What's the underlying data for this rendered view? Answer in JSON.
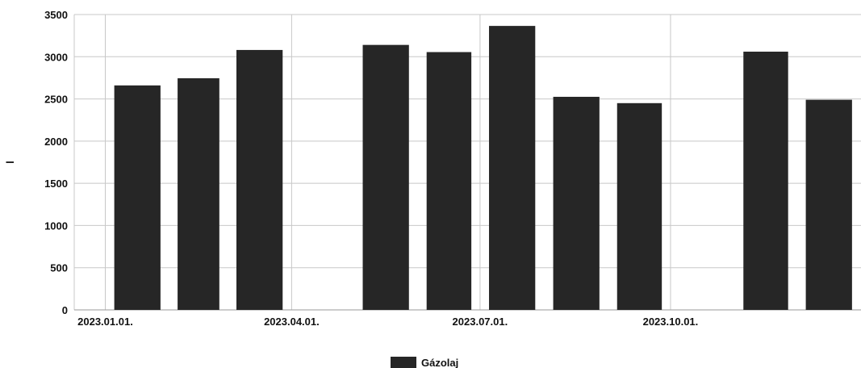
{
  "chart_data": {
    "type": "bar",
    "ylabel": "l",
    "ylim": [
      0,
      3500
    ],
    "yticks": [
      0,
      500,
      1000,
      1500,
      2000,
      2500,
      3000,
      3500
    ],
    "x_axis_type": "date",
    "xlim": [
      "2022-12-17",
      "2024-01-01"
    ],
    "xticks": [
      {
        "date": "2023-01-01",
        "label": "2023.01.01."
      },
      {
        "date": "2023-04-01",
        "label": "2023.04.01."
      },
      {
        "date": "2023-07-01",
        "label": "2023.07.01."
      },
      {
        "date": "2023-10-01",
        "label": "2023.10.01."
      }
    ],
    "grid": true,
    "legend_position": "bottom-center",
    "series": [
      {
        "name": "Gázolaj",
        "color": "#262626",
        "points": [
          {
            "x": "2023-01-01",
            "y": 2660
          },
          {
            "x": "2023-02-01",
            "y": 2745
          },
          {
            "x": "2023-03-01",
            "y": 3080
          },
          {
            "x": "2023-05-01",
            "y": 3140
          },
          {
            "x": "2023-06-01",
            "y": 3055
          },
          {
            "x": "2023-07-01",
            "y": 3365
          },
          {
            "x": "2023-08-01",
            "y": 2525
          },
          {
            "x": "2023-09-01",
            "y": 2450
          },
          {
            "x": "2023-11-01",
            "y": 3060
          },
          {
            "x": "2023-12-01",
            "y": 2490
          }
        ]
      }
    ]
  }
}
